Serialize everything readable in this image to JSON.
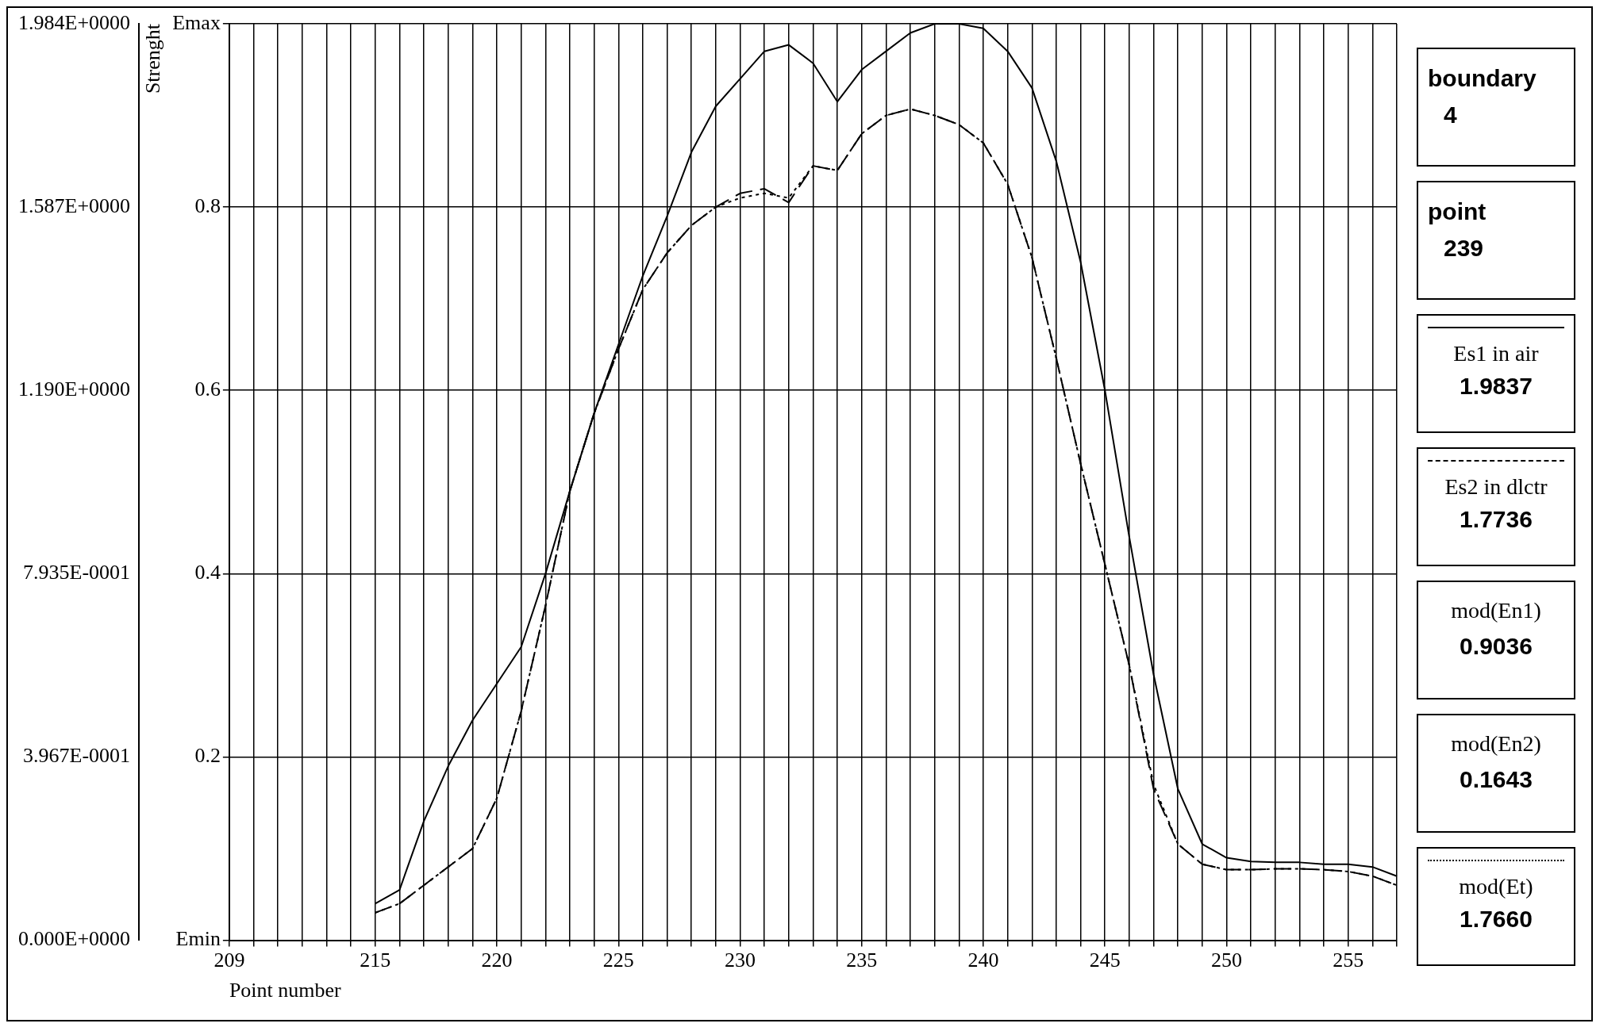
{
  "chart_data": {
    "type": "line",
    "xlabel": "Point number",
    "ylabel": "Strenght",
    "categories": [
      "209",
      null,
      null,
      null,
      null,
      null,
      "215",
      null,
      null,
      null,
      null,
      "220",
      null,
      null,
      null,
      null,
      "225",
      null,
      null,
      null,
      null,
      "230",
      null,
      null,
      null,
      null,
      "235",
      null,
      null,
      null,
      null,
      "240",
      null,
      null,
      null,
      null,
      "245",
      null,
      null,
      null,
      null,
      "250",
      null,
      null,
      null,
      null,
      "255",
      null,
      null
    ],
    "series": [
      {
        "name": "Es1 in air",
        "color": "#000000",
        "line_style": "solid",
        "values": [
          null,
          null,
          null,
          null,
          null,
          null,
          0.04,
          0.055,
          0.13,
          0.19,
          0.24,
          0.28,
          0.32,
          0.4,
          0.49,
          0.575,
          0.65,
          0.725,
          0.79,
          0.86,
          0.91,
          0.94,
          0.97,
          0.977,
          0.957,
          0.915,
          0.95,
          0.97,
          0.99,
          1,
          1,
          0.995,
          0.97,
          0.93,
          0.85,
          0.74,
          0.6,
          0.44,
          0.29,
          0.165,
          0.105,
          0.09,
          0.086,
          0.085,
          0.085,
          0.083,
          0.083,
          0.08,
          0.07
        ]
      },
      {
        "name": "Es2 in dlctr",
        "color": "#000000",
        "line_style": "dashed",
        "values": [
          null,
          null,
          null,
          null,
          null,
          null,
          0.03,
          0.04,
          0.06,
          0.08,
          0.1,
          0.155,
          0.25,
          0.365,
          0.49,
          0.575,
          0.645,
          0.71,
          0.75,
          0.78,
          0.8,
          0.815,
          0.82,
          0.805,
          0.845,
          0.84,
          0.88,
          0.9,
          0.907,
          0.9,
          0.89,
          0.87,
          0.825,
          0.745,
          0.635,
          0.52,
          0.41,
          0.3,
          0.165,
          0.105,
          0.083,
          0.077,
          0.077,
          0.078,
          0.078,
          0.077,
          0.075,
          0.07,
          0.06
        ]
      },
      {
        "name": "mod(Et)",
        "color": "#000000",
        "line_style": "dotted",
        "values": [
          null,
          null,
          null,
          null,
          null,
          null,
          0.03,
          0.04,
          0.06,
          0.08,
          0.1,
          0.155,
          0.25,
          0.365,
          0.49,
          0.575,
          0.645,
          0.71,
          0.75,
          0.78,
          0.8,
          0.81,
          0.815,
          0.81,
          0.845,
          0.84,
          0.88,
          0.9,
          0.907,
          0.9,
          0.89,
          0.87,
          0.825,
          0.745,
          0.635,
          0.52,
          0.41,
          0.3,
          0.17,
          0.105,
          0.083,
          0.077,
          0.077,
          0.078,
          0.078,
          0.077,
          0.075,
          0.07,
          0.06
        ]
      }
    ],
    "ylim": [
      0,
      1
    ],
    "yticks": [
      {
        "value": 0,
        "label": "Emin"
      },
      0.2,
      0.4,
      0.6,
      0.8,
      {
        "value": 1,
        "label": "Emax"
      }
    ],
    "y2lim": [
      0,
      1.984
    ],
    "y2ticks": [
      {
        "value": 0,
        "label": "0.000E+0000"
      },
      {
        "value": 0.3967,
        "label": "3.967E-0001"
      },
      {
        "value": 0.7935,
        "label": "7.935E-0001"
      },
      {
        "value": 1.19,
        "label": "1.190E+0000"
      },
      {
        "value": 1.587,
        "label": "1.587E+0000"
      },
      {
        "value": 1.984,
        "label": "1.984E+0000"
      }
    ],
    "grid": true,
    "legend": "right",
    "marker": "none",
    "annotations": [
      "boundary",
      "4",
      "point",
      "239",
      "1.9837",
      "1.7736",
      "mod(En1)",
      "0.9036",
      "mod(En2)",
      "0.1643",
      "1.7660"
    ]
  }
}
